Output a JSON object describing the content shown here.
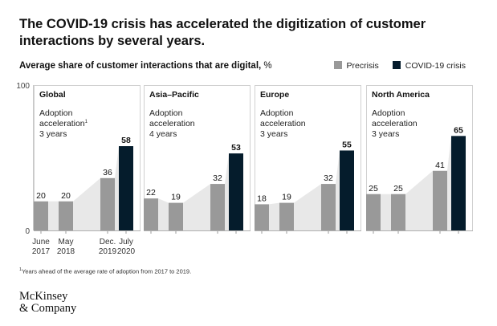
{
  "headline": "The COVID-19 crisis has accelerated the digitization of customer interactions by several years.",
  "subtitle": {
    "text": "Average share of customer interactions that are digital,",
    "unit": "%"
  },
  "legend": {
    "precrisis_label": "Precrisis",
    "covid_label": "COVID-19 crisis"
  },
  "colors": {
    "precrisis": "#999999",
    "covid": "#051c2c",
    "area": "#e8e8e8"
  },
  "chart_data": {
    "type": "bar",
    "title": "Average share of customer interactions that are digital, %",
    "ylabel": "%",
    "ylim": [
      0,
      100
    ],
    "y_ticks": [
      0,
      100
    ],
    "categories": [
      "June 2017",
      "May 2018",
      "Dec. 2019",
      "July 2020"
    ],
    "x_tick_labels": [
      [
        "June",
        "2017"
      ],
      [
        "May",
        "2018"
      ],
      [
        "Dec.",
        "2019"
      ],
      [
        "July",
        "2020"
      ]
    ],
    "series": [
      {
        "name": "Global",
        "values": [
          20,
          20,
          36,
          58
        ],
        "note_lines": [
          "Adoption",
          "acceleration",
          "3 years"
        ],
        "footnote_marker": "1"
      },
      {
        "name": "Asia–Pacific",
        "values": [
          22,
          19,
          32,
          53
        ],
        "note_lines": [
          "Adoption",
          "acceleration",
          "4 years"
        ]
      },
      {
        "name": "Europe",
        "values": [
          18,
          19,
          32,
          55
        ],
        "note_lines": [
          "Adoption",
          "acceleration",
          "3 years"
        ]
      },
      {
        "name": "North America",
        "values": [
          25,
          25,
          41,
          65
        ],
        "note_lines": [
          "Adoption",
          "acceleration",
          "3 years"
        ]
      }
    ],
    "bar_period": [
      "precrisis",
      "precrisis",
      "precrisis",
      "covid"
    ]
  },
  "footnote": {
    "marker": "1",
    "text": "Years ahead of the average rate of adoption from 2017 to 2019."
  },
  "logo": {
    "line1": "McKinsey",
    "line2": "& Company"
  }
}
